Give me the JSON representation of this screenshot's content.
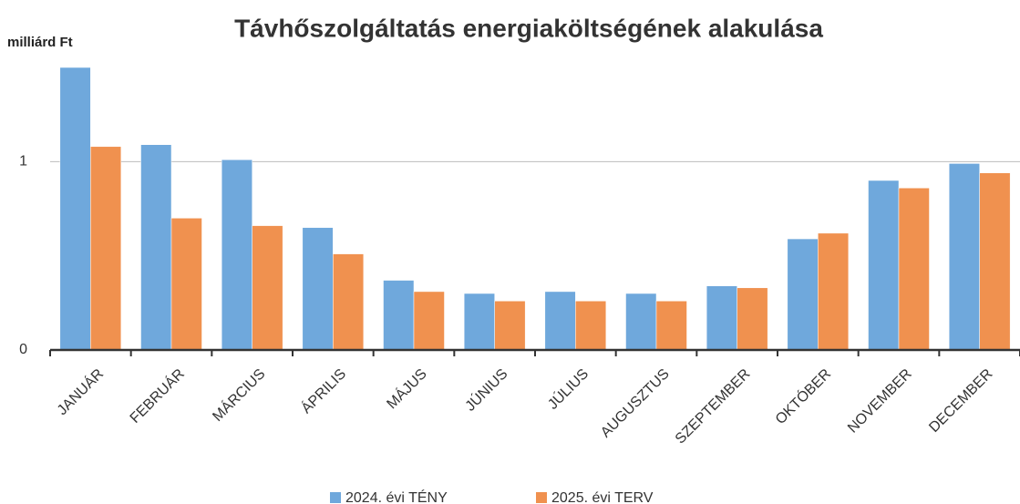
{
  "chart_data": {
    "type": "bar",
    "title": "Távhőszolgáltatás energiaköltségének alakulása",
    "y_label": "milliárd Ft",
    "categories": [
      "JANUÁR",
      "FEBRUÁR",
      "MÁRCIUS",
      "ÁPRILIS",
      "MÁJUS",
      "JÚNIUS",
      "JÚLIUS",
      "AUGUSZTUS",
      "SZEPTEMBER",
      "OKTÓBER",
      "NOVEMBER",
      "DECEMBER"
    ],
    "series": [
      {
        "name": "2024. évi TÉNY",
        "color": "#6fa8dc",
        "values": [
          1.5,
          1.09,
          1.01,
          0.65,
          0.37,
          0.3,
          0.31,
          0.3,
          0.34,
          0.59,
          0.9,
          0.99
        ]
      },
      {
        "name": "2025. évi TERV",
        "color": "#f0914f",
        "values": [
          1.08,
          0.7,
          0.66,
          0.51,
          0.31,
          0.26,
          0.26,
          0.26,
          0.33,
          0.62,
          0.86,
          0.94
        ]
      }
    ],
    "ylim": [
      0,
      1.5
    ],
    "yticks": [
      0,
      1
    ],
    "grid": true
  }
}
